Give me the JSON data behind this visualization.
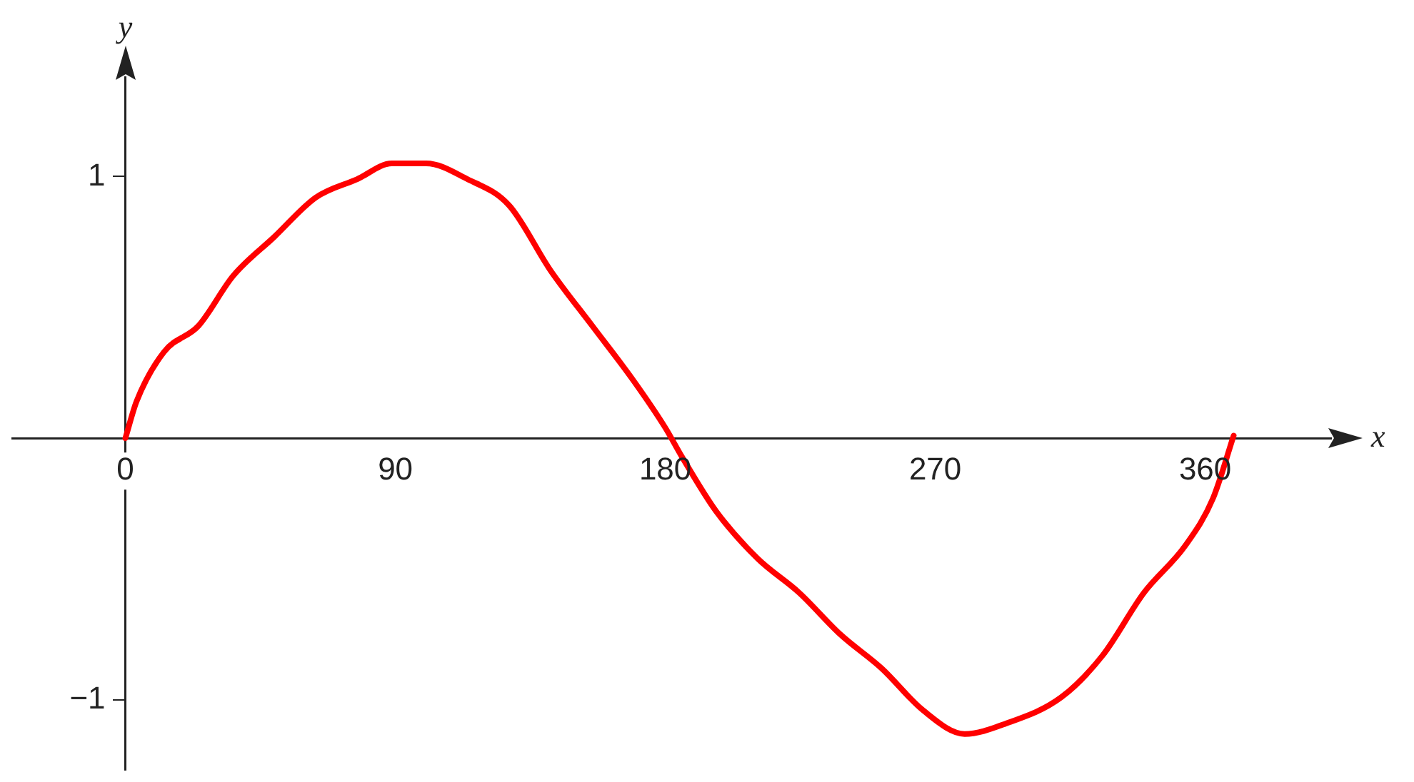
{
  "chart_data": {
    "type": "line",
    "xlabel": "x",
    "ylabel": "y",
    "x": [
      0,
      3.7,
      12.9,
      24.4,
      35.9,
      49.7,
      63.5,
      77.3,
      88.8,
      100.3,
      114,
      127.9,
      141.8,
      155.6,
      169.4,
      180,
      185.5,
      197,
      210.8,
      224.6,
      238.4,
      252.2,
      266,
      279.8,
      293.6,
      312,
      325.8,
      339.6,
      353.4,
      362.6,
      369.5
    ],
    "series": [
      {
        "color": "#ff0000",
        "values": [
          0,
          0.14,
          0.33,
          0.43,
          0.62,
          0.77,
          0.92,
          0.99,
          1.05,
          1.05,
          0.99,
          0.89,
          0.64,
          0.43,
          0.22,
          0.04,
          -0.07,
          -0.28,
          -0.46,
          -0.59,
          -0.75,
          -0.88,
          -1.04,
          -1.13,
          -1.09,
          -0.99,
          -0.83,
          -0.59,
          -0.41,
          -0.23,
          0.01
        ]
      }
    ],
    "xlim": [
      -38,
      402
    ],
    "ylim": [
      -1.27,
      1.38
    ],
    "xticks": [
      0,
      90,
      180,
      270,
      360
    ],
    "yticks": [
      {
        "value": -1,
        "label": "−1"
      },
      1
    ],
    "grid": false,
    "legend": false,
    "marker": "none",
    "line_style": "solid"
  }
}
